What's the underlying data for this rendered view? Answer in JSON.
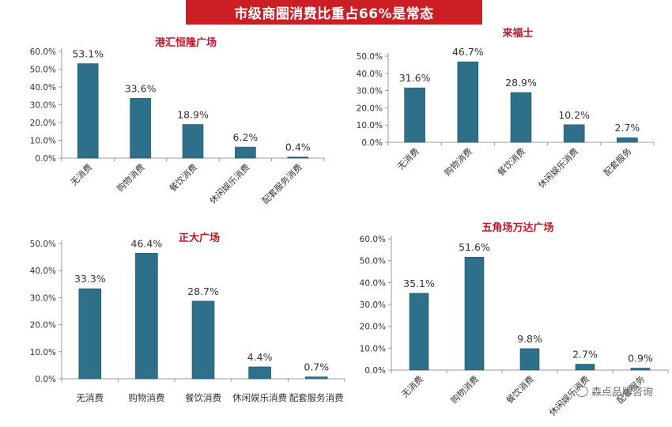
{
  "banner": {
    "title": "市级商圈消费比重占66%是常态"
  },
  "watermark": {
    "text": "森点品牌咨询"
  },
  "colors": {
    "bar": "#2e6f89",
    "bar_dark": "#1f5468",
    "title": "#c0162a",
    "axis": "#999999",
    "text": "#333333"
  },
  "chart_data": [
    {
      "type": "bar",
      "title": "港汇恒隆广场",
      "categories": [
        "无消费",
        "购物消费",
        "餐饮消费",
        "休闲娱乐消费",
        "配套服务消费"
      ],
      "values": [
        53.1,
        33.6,
        18.9,
        6.2,
        0.4
      ],
      "data_labels": [
        "53.1%",
        "33.6%",
        "18.9%",
        "6.2%",
        "0.4%"
      ],
      "yticks": [
        "0.0%",
        "10.0%",
        "20.0%",
        "30.0%",
        "40.0%",
        "50.0%",
        "60.0%"
      ],
      "ylim": [
        0,
        60
      ],
      "xlabel": "",
      "ylabel": "",
      "grid": false,
      "label_rotation": "diagonal"
    },
    {
      "type": "bar",
      "title": "来福士",
      "categories": [
        "无消费",
        "购物消费",
        "餐饮消费",
        "休闲娱乐消费",
        "配套服务"
      ],
      "values": [
        31.6,
        46.7,
        28.9,
        10.2,
        2.7
      ],
      "data_labels": [
        "31.6%",
        "46.7%",
        "28.9%",
        "10.2%",
        "2.7%"
      ],
      "yticks": [
        "0.0%",
        "10.0%",
        "20.0%",
        "30.0%",
        "40.0%",
        "50.0%"
      ],
      "ylim": [
        0,
        50
      ],
      "xlabel": "",
      "ylabel": "",
      "grid": false,
      "label_rotation": "diagonal"
    },
    {
      "type": "bar",
      "title": "正大广场",
      "categories": [
        "无消费",
        "购物消费",
        "餐饮消费",
        "休闲娱乐消费",
        "配套服务消费"
      ],
      "values": [
        33.3,
        46.4,
        28.7,
        4.4,
        0.7
      ],
      "data_labels": [
        "33.3%",
        "46.4%",
        "28.7%",
        "4.4%",
        "0.7%"
      ],
      "yticks": [
        "0.0%",
        "10.0%",
        "20.0%",
        "30.0%",
        "40.0%",
        "50.0%"
      ],
      "ylim": [
        0,
        50
      ],
      "xlabel": "",
      "ylabel": "",
      "grid": false,
      "label_rotation": "horizontal"
    },
    {
      "type": "bar",
      "title": "五角场万达广场",
      "categories": [
        "无消费",
        "购物消费",
        "餐饮消费",
        "休闲娱乐消费",
        "配套服务"
      ],
      "values": [
        35.1,
        51.6,
        9.8,
        2.7,
        0.9
      ],
      "data_labels": [
        "35.1%",
        "51.6%",
        "9.8%",
        "2.7%",
        "0.9%"
      ],
      "yticks": [
        "0.0%",
        "10.0%",
        "20.0%",
        "30.0%",
        "40.0%",
        "50.0%",
        "60.0%"
      ],
      "ylim": [
        0,
        60
      ],
      "xlabel": "",
      "ylabel": "",
      "grid": false,
      "label_rotation": "diagonal"
    }
  ]
}
